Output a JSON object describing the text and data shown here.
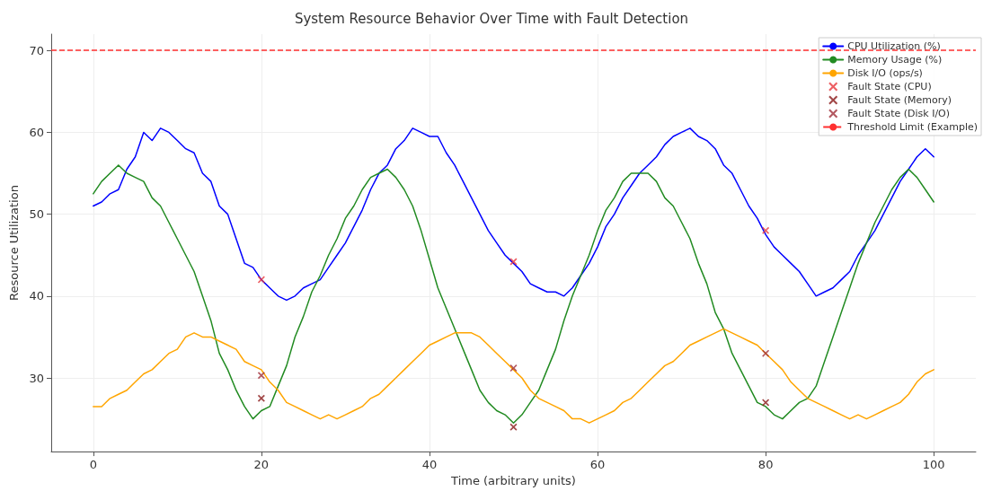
{
  "chart_data": {
    "type": "line",
    "title": "System Resource Behavior Over Time with Fault Detection",
    "xlabel": "Time (arbitrary units)",
    "ylabel": "Resource Utilization",
    "x": [
      0,
      1,
      2,
      3,
      4,
      5,
      6,
      7,
      8,
      9,
      10,
      11,
      12,
      13,
      14,
      15,
      16,
      17,
      18,
      19,
      20,
      21,
      22,
      23,
      24,
      25,
      26,
      27,
      28,
      29,
      30,
      31,
      32,
      33,
      34,
      35,
      36,
      37,
      38,
      39,
      40,
      41,
      42,
      43,
      44,
      45,
      46,
      47,
      48,
      49,
      50,
      51,
      52,
      53,
      54,
      55,
      56,
      57,
      58,
      59,
      60,
      61,
      62,
      63,
      64,
      65,
      66,
      67,
      68,
      69,
      70,
      71,
      72,
      73,
      74,
      75,
      76,
      77,
      78,
      79,
      80,
      81,
      82,
      83,
      84,
      85,
      86,
      87,
      88,
      89,
      90,
      91,
      92,
      93,
      94,
      95,
      96,
      97,
      98,
      99,
      100
    ],
    "series": [
      {
        "name": "CPU Utilization (%)",
        "color": "#0000ff",
        "values": [
          51,
          51.5,
          52.5,
          53,
          55.5,
          57,
          60,
          59,
          60.5,
          60,
          59,
          58,
          57.5,
          55,
          54,
          51,
          50,
          47,
          44,
          43.5,
          42,
          41,
          40,
          39.5,
          40,
          41,
          41.5,
          42,
          43.5,
          45,
          46.5,
          48.5,
          50.5,
          53,
          55,
          56,
          58,
          59,
          60.5,
          60,
          59.5,
          59.5,
          57.5,
          56,
          54,
          52,
          50,
          48,
          46.5,
          45,
          44,
          43,
          41.5,
          41,
          40.5,
          40.5,
          40,
          41,
          42.5,
          44,
          46,
          48.5,
          50,
          52,
          53.5,
          55,
          56,
          57,
          58.5,
          59.5,
          60,
          60.5,
          59.5,
          59,
          58,
          56,
          55,
          53,
          51,
          49.5,
          47.5,
          46,
          45,
          44,
          43,
          41.5,
          40,
          40.5,
          41,
          42,
          43,
          45,
          46.5,
          48,
          50,
          52,
          54,
          55.5,
          57,
          58,
          57
        ]
      },
      {
        "name": "Memory Usage (%)",
        "color": "#228b22",
        "values": [
          52.5,
          54,
          55,
          56,
          55,
          54.5,
          54,
          52,
          51,
          49,
          47,
          45,
          43,
          40,
          37,
          33,
          31,
          28.5,
          26.5,
          25,
          26,
          26.5,
          29,
          31.5,
          35,
          37.5,
          40.5,
          42.5,
          45,
          47,
          49.5,
          51,
          53,
          54.5,
          55,
          55.5,
          54.5,
          53,
          51,
          48,
          44.5,
          41,
          38.5,
          36,
          33.5,
          31,
          28.5,
          27,
          26,
          25.5,
          24.5,
          25.5,
          27,
          28.5,
          31,
          33.5,
          37,
          40,
          42.5,
          45,
          48,
          50.5,
          52,
          54,
          55,
          55,
          55,
          54,
          52,
          51,
          49,
          47,
          44,
          41.5,
          38,
          36,
          33,
          31,
          29,
          27,
          26.5,
          25.5,
          25,
          26,
          27,
          27.5,
          29,
          32,
          35,
          38,
          41,
          44,
          46.5,
          49,
          51,
          53,
          54.5,
          55.5,
          54.5,
          53,
          51.5
        ]
      },
      {
        "name": "Disk I/O (ops/s)",
        "color": "#ffa500",
        "values": [
          26.5,
          26.5,
          27.5,
          28,
          28.5,
          29.5,
          30.5,
          31,
          32,
          33,
          33.5,
          35,
          35.5,
          35,
          35,
          34.5,
          34,
          33.5,
          32,
          31.5,
          31,
          29.5,
          28.5,
          27,
          26.5,
          26,
          25.5,
          25,
          25.5,
          25,
          25.5,
          26,
          26.5,
          27.5,
          28,
          29,
          30,
          31,
          32,
          33,
          34,
          34.5,
          35,
          35.5,
          35.5,
          35.5,
          35,
          34,
          33,
          32,
          31,
          30,
          28.5,
          27.5,
          27,
          26.5,
          26,
          25,
          25,
          24.5,
          25,
          25.5,
          26,
          27,
          27.5,
          28.5,
          29.5,
          30.5,
          31.5,
          32,
          33,
          34,
          34.5,
          35,
          35.5,
          36,
          35.5,
          35,
          34.5,
          34,
          33,
          32,
          31,
          29.5,
          28.5,
          27.5,
          27,
          26.5,
          26,
          25.5,
          25,
          25.5,
          25,
          25.5,
          26,
          26.5,
          27,
          28,
          29.5,
          30.5,
          31
        ]
      },
      {
        "name": "Fault State (CPU)",
        "type": "scatter",
        "marker": "cross",
        "color": "#e8383d",
        "x": [
          20,
          50,
          80
        ],
        "values": [
          42,
          44.2,
          48
        ]
      },
      {
        "name": "Fault State (Memory)",
        "type": "scatter",
        "marker": "cross",
        "color": "#8b1a1a",
        "x": [
          20,
          50,
          80
        ],
        "values": [
          27.5,
          24,
          27
        ]
      },
      {
        "name": "Fault State (Disk I/O)",
        "type": "scatter",
        "marker": "cross",
        "color": "#a0303a",
        "x": [
          20,
          50,
          80
        ],
        "values": [
          30.3,
          31.2,
          33
        ]
      }
    ],
    "ref_lines": [
      {
        "axis": "y",
        "value": 70,
        "label": "Threshold Limit (Example)",
        "color": "#ff3030",
        "line_style": "dashed"
      }
    ],
    "xlim": [
      -5,
      105
    ],
    "xticks": [
      0,
      20,
      40,
      60,
      80,
      100
    ],
    "ylim": [
      21,
      72
    ],
    "yticks": [
      30,
      40,
      50,
      60,
      70
    ],
    "grid": true,
    "legend": "top right"
  }
}
